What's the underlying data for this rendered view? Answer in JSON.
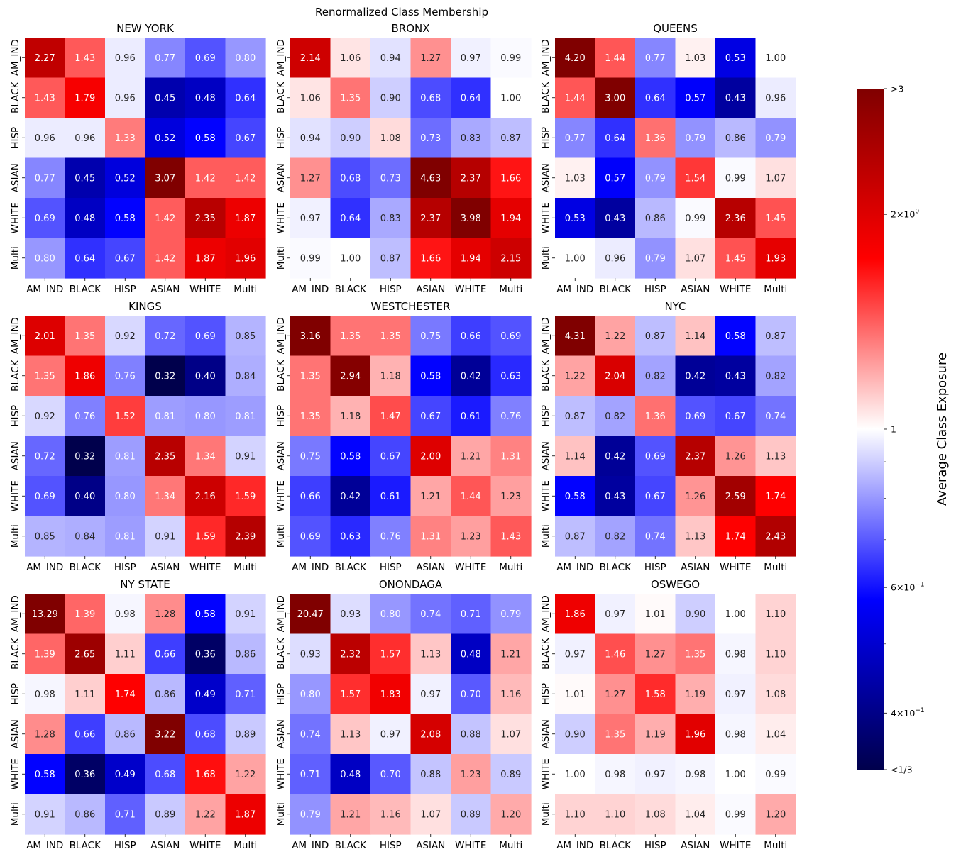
{
  "figure": {
    "title": "Renormalized Class Membership"
  },
  "colorbar": {
    "label": "Average Class Exposure",
    "scale": "log",
    "min": 0.3333,
    "max": 3,
    "colormap": "seismic",
    "ticks": [
      {
        "value": 3,
        "label": ">3"
      },
      {
        "value": 2,
        "label": "2×10⁰",
        "mantissa": "2",
        "exponent": "0"
      },
      {
        "value": 1,
        "label": "1"
      },
      {
        "value": 0.6,
        "label": "6×10⁻¹",
        "mantissa": "6",
        "exponent": "−1"
      },
      {
        "value": 0.4,
        "label": "4×10⁻¹",
        "mantissa": "4",
        "exponent": "−1"
      },
      {
        "value": 0.3333,
        "label": "<1/3"
      }
    ],
    "minor_ticks": [
      0.9,
      0.8,
      0.7,
      0.5
    ]
  },
  "chart_data": [
    {
      "type": "heatmap",
      "title": "NEW YORK",
      "x": [
        "AM_IND",
        "BLACK",
        "HISP",
        "ASIAN",
        "WHITE",
        "Multi"
      ],
      "y": [
        "AM_IND",
        "BLACK",
        "HISP",
        "ASIAN",
        "WHITE",
        "Multi"
      ],
      "values": [
        [
          2.27,
          1.43,
          0.96,
          0.77,
          0.69,
          0.8
        ],
        [
          1.43,
          1.79,
          0.96,
          0.45,
          0.48,
          0.64
        ],
        [
          0.96,
          0.96,
          1.33,
          0.52,
          0.58,
          0.67
        ],
        [
          0.77,
          0.45,
          0.52,
          3.07,
          1.42,
          1.42
        ],
        [
          0.69,
          0.48,
          0.58,
          1.42,
          2.35,
          1.87
        ],
        [
          0.8,
          0.64,
          0.67,
          1.42,
          1.87,
          1.96
        ]
      ]
    },
    {
      "type": "heatmap",
      "title": "BRONX",
      "x": [
        "AM_IND",
        "BLACK",
        "HISP",
        "ASIAN",
        "WHITE",
        "Multi"
      ],
      "y": [
        "AM_IND",
        "BLACK",
        "HISP",
        "ASIAN",
        "WHITE",
        "Multi"
      ],
      "values": [
        [
          2.14,
          1.06,
          0.94,
          1.27,
          0.97,
          0.99
        ],
        [
          1.06,
          1.35,
          0.9,
          0.68,
          0.64,
          1.0
        ],
        [
          0.94,
          0.9,
          1.08,
          0.73,
          0.83,
          0.87
        ],
        [
          1.27,
          0.68,
          0.73,
          4.63,
          2.37,
          1.66
        ],
        [
          0.97,
          0.64,
          0.83,
          2.37,
          3.98,
          1.94
        ],
        [
          0.99,
          1.0,
          0.87,
          1.66,
          1.94,
          2.15
        ]
      ]
    },
    {
      "type": "heatmap",
      "title": "QUEENS",
      "x": [
        "AM_IND",
        "BLACK",
        "HISP",
        "ASIAN",
        "WHITE",
        "Multi"
      ],
      "y": [
        "AM_IND",
        "BLACK",
        "HISP",
        "ASIAN",
        "WHITE",
        "Multi"
      ],
      "values": [
        [
          4.2,
          1.44,
          0.77,
          1.03,
          0.53,
          1.0
        ],
        [
          1.44,
          3.0,
          0.64,
          0.57,
          0.43,
          0.96
        ],
        [
          0.77,
          0.64,
          1.36,
          0.79,
          0.86,
          0.79
        ],
        [
          1.03,
          0.57,
          0.79,
          1.54,
          0.99,
          1.07
        ],
        [
          0.53,
          0.43,
          0.86,
          0.99,
          2.36,
          1.45
        ],
        [
          1.0,
          0.96,
          0.79,
          1.07,
          1.45,
          1.93
        ]
      ]
    },
    {
      "type": "heatmap",
      "title": "KINGS",
      "x": [
        "AM_IND",
        "BLACK",
        "HISP",
        "ASIAN",
        "WHITE",
        "Multi"
      ],
      "y": [
        "AM_IND",
        "BLACK",
        "HISP",
        "ASIAN",
        "WHITE",
        "Multi"
      ],
      "values": [
        [
          2.01,
          1.35,
          0.92,
          0.72,
          0.69,
          0.85
        ],
        [
          1.35,
          1.86,
          0.76,
          0.32,
          0.4,
          0.84
        ],
        [
          0.92,
          0.76,
          1.52,
          0.81,
          0.8,
          0.81
        ],
        [
          0.72,
          0.32,
          0.81,
          2.35,
          1.34,
          0.91
        ],
        [
          0.69,
          0.4,
          0.8,
          1.34,
          2.16,
          1.59
        ],
        [
          0.85,
          0.84,
          0.81,
          0.91,
          1.59,
          2.39
        ]
      ]
    },
    {
      "type": "heatmap",
      "title": "WESTCHESTER",
      "x": [
        "AM_IND",
        "BLACK",
        "HISP",
        "ASIAN",
        "WHITE",
        "Multi"
      ],
      "y": [
        "AM_IND",
        "BLACK",
        "HISP",
        "ASIAN",
        "WHITE",
        "Multi"
      ],
      "values": [
        [
          3.16,
          1.35,
          1.35,
          0.75,
          0.66,
          0.69
        ],
        [
          1.35,
          2.94,
          1.18,
          0.58,
          0.42,
          0.63
        ],
        [
          1.35,
          1.18,
          1.47,
          0.67,
          0.61,
          0.76
        ],
        [
          0.75,
          0.58,
          0.67,
          2.0,
          1.21,
          1.31
        ],
        [
          0.66,
          0.42,
          0.61,
          1.21,
          1.44,
          1.23
        ],
        [
          0.69,
          0.63,
          0.76,
          1.31,
          1.23,
          1.43
        ]
      ]
    },
    {
      "type": "heatmap",
      "title": "NYC",
      "x": [
        "AM_IND",
        "BLACK",
        "HISP",
        "ASIAN",
        "WHITE",
        "Multi"
      ],
      "y": [
        "AM_IND",
        "BLACK",
        "HISP",
        "ASIAN",
        "WHITE",
        "Multi"
      ],
      "values": [
        [
          4.31,
          1.22,
          0.87,
          1.14,
          0.58,
          0.87
        ],
        [
          1.22,
          2.04,
          0.82,
          0.42,
          0.43,
          0.82
        ],
        [
          0.87,
          0.82,
          1.36,
          0.69,
          0.67,
          0.74
        ],
        [
          1.14,
          0.42,
          0.69,
          2.37,
          1.26,
          1.13
        ],
        [
          0.58,
          0.43,
          0.67,
          1.26,
          2.59,
          1.74
        ],
        [
          0.87,
          0.82,
          0.74,
          1.13,
          1.74,
          2.43
        ]
      ]
    },
    {
      "type": "heatmap",
      "title": "NY STATE",
      "x": [
        "AM_IND",
        "BLACK",
        "HISP",
        "ASIAN",
        "WHITE",
        "Multi"
      ],
      "y": [
        "AM_IND",
        "BLACK",
        "HISP",
        "ASIAN",
        "WHITE",
        "Multi"
      ],
      "values": [
        [
          13.29,
          1.39,
          0.98,
          1.28,
          0.58,
          0.91
        ],
        [
          1.39,
          2.65,
          1.11,
          0.66,
          0.36,
          0.86
        ],
        [
          0.98,
          1.11,
          1.74,
          0.86,
          0.49,
          0.71
        ],
        [
          1.28,
          0.66,
          0.86,
          3.22,
          0.68,
          0.89
        ],
        [
          0.58,
          0.36,
          0.49,
          0.68,
          1.68,
          1.22
        ],
        [
          0.91,
          0.86,
          0.71,
          0.89,
          1.22,
          1.87
        ]
      ]
    },
    {
      "type": "heatmap",
      "title": "ONONDAGA",
      "x": [
        "AM_IND",
        "BLACK",
        "HISP",
        "ASIAN",
        "WHITE",
        "Multi"
      ],
      "y": [
        "AM_IND",
        "BLACK",
        "HISP",
        "ASIAN",
        "WHITE",
        "Multi"
      ],
      "values": [
        [
          20.47,
          0.93,
          0.8,
          0.74,
          0.71,
          0.79
        ],
        [
          0.93,
          2.32,
          1.57,
          1.13,
          0.48,
          1.21
        ],
        [
          0.8,
          1.57,
          1.83,
          0.97,
          0.7,
          1.16
        ],
        [
          0.74,
          1.13,
          0.97,
          2.08,
          0.88,
          1.07
        ],
        [
          0.71,
          0.48,
          0.7,
          0.88,
          1.23,
          0.89
        ],
        [
          0.79,
          1.21,
          1.16,
          1.07,
          0.89,
          1.2
        ]
      ]
    },
    {
      "type": "heatmap",
      "title": "OSWEGO",
      "x": [
        "AM_IND",
        "BLACK",
        "HISP",
        "ASIAN",
        "WHITE",
        "Multi"
      ],
      "y": [
        "AM_IND",
        "BLACK",
        "HISP",
        "ASIAN",
        "WHITE",
        "Multi"
      ],
      "values": [
        [
          1.86,
          0.97,
          1.01,
          0.9,
          1.0,
          1.1
        ],
        [
          0.97,
          1.46,
          1.27,
          1.35,
          0.98,
          1.1
        ],
        [
          1.01,
          1.27,
          1.58,
          1.19,
          0.97,
          1.08
        ],
        [
          0.9,
          1.35,
          1.19,
          1.96,
          0.98,
          1.04
        ],
        [
          1.0,
          0.98,
          0.97,
          0.98,
          1.0,
          0.99
        ],
        [
          1.1,
          1.1,
          1.08,
          1.04,
          0.99,
          1.2
        ]
      ]
    }
  ]
}
